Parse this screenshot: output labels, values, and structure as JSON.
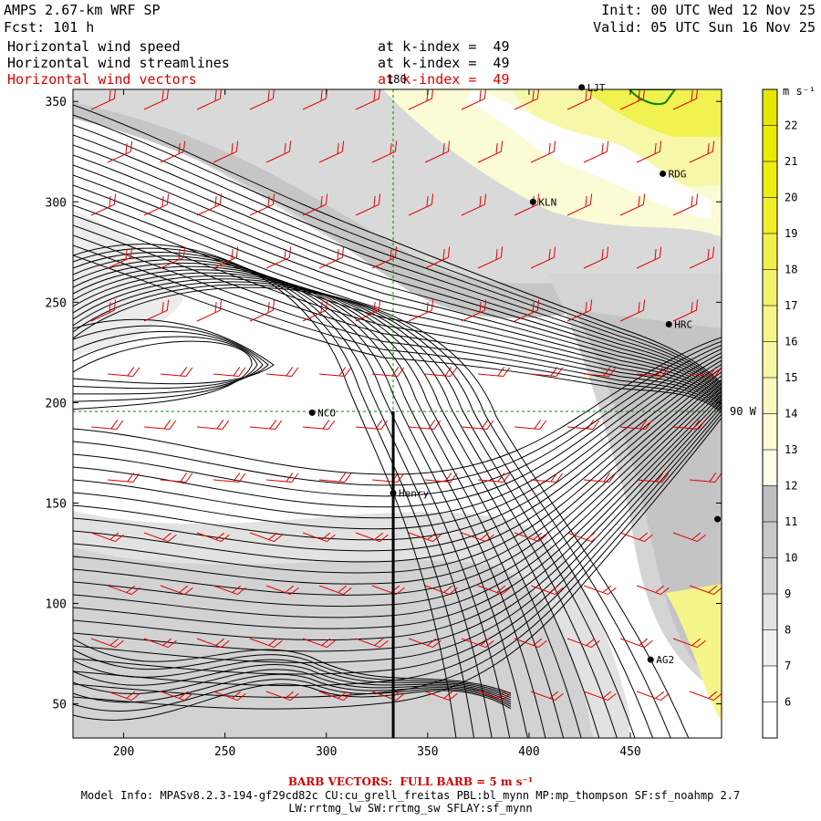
{
  "header": {
    "model": "AMPS 2.67-km WRF SP",
    "forecast": "Fcst: 101 h",
    "init": "Init: 00 UTC Wed 12 Nov 25",
    "valid": "Valid: 05 UTC Sun 16 Nov 25",
    "fields": [
      {
        "name": "Horizontal wind speed",
        "level": "at k-index =  49",
        "color": "#000000"
      },
      {
        "name": "Horizontal wind streamlines",
        "level": "at k-index =  49",
        "color": "#000000"
      },
      {
        "name": "Horizontal wind vectors",
        "level": "at k-index =  49",
        "color": "#e00000"
      }
    ]
  },
  "map": {
    "x_ticks": [
      "200",
      "250",
      "300",
      "350",
      "400",
      "450"
    ],
    "y_ticks": [
      "350",
      "300",
      "250",
      "200",
      "150",
      "100",
      "50"
    ],
    "x_range": [
      175,
      495
    ],
    "y_range": [
      33,
      356
    ],
    "meridian_label": "180",
    "parallel_label": "90 W",
    "cross_section_x": 333,
    "stations": [
      {
        "name": "LJT",
        "x": 426,
        "y": 357
      },
      {
        "name": "RDG",
        "x": 466,
        "y": 314
      },
      {
        "name": "KLN",
        "x": 402,
        "y": 300
      },
      {
        "name": "HRC",
        "x": 469,
        "y": 239
      },
      {
        "name": "NCO",
        "x": 293,
        "y": 195
      },
      {
        "name": "Henry",
        "x": 333,
        "y": 155
      },
      {
        "name": "",
        "x": 493,
        "y": 142
      },
      {
        "name": "AG2",
        "x": 460,
        "y": 72
      }
    ]
  },
  "colorbar": {
    "unit": "m s⁻¹",
    "levels": [
      "6",
      "7",
      "8",
      "9",
      "10",
      "11",
      "12",
      "13",
      "14",
      "15",
      "16",
      "17",
      "18",
      "19",
      "20",
      "21",
      "22"
    ],
    "colors": [
      "#ffffff",
      "#f0f0f0",
      "#e2e2e2",
      "#d4d4d4",
      "#c8c8c8",
      "#bebebe",
      "#fdfdea",
      "#fbfbd4",
      "#f9f9be",
      "#f7f7a4",
      "#f5f58a",
      "#f3f36c",
      "#f1f14c",
      "#efef2a",
      "#eded10",
      "#ebeb00",
      "#e6e600"
    ]
  },
  "footer": {
    "barb_note": "BARB VECTORS:  FULL BARB = 5 m s⁻¹",
    "model_info": "Model Info: MPASv8.2.3-194-gf29cd82c CU:cu_grell_freitas PBL:bl_mynn MP:mp_thompson SF:sf_noahmp 2.7",
    "model_info2": "LW:rrtmg_lw SW:rrtmg_sw SFLAY:sf_mynn"
  }
}
